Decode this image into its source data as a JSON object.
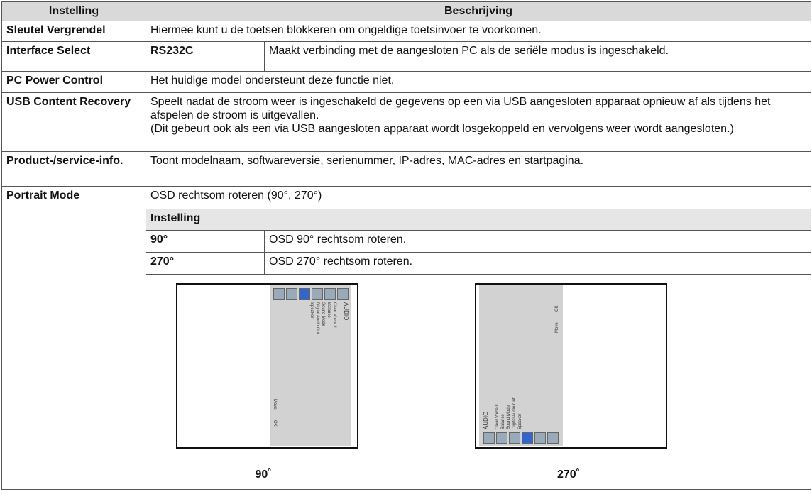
{
  "table": {
    "header": [
      "Instelling",
      "Beschrijving"
    ],
    "rows": [
      {
        "setting": "Sleutel Vergrendel",
        "description": "Hiermee kunt u de toetsen blokkeren om ongeldige toetsinvoer te voorkomen."
      },
      {
        "setting": "Interface Select",
        "option": "RS232C",
        "description": "Maakt verbinding met de aangesloten PC als de seriële modus is ingeschakeld."
      },
      {
        "setting": "PC Power Control",
        "description": "Het huidige model ondersteunt deze functie niet."
      },
      {
        "setting": "USB Content Recovery",
        "description": [
          "Speelt nadat de stroom weer is ingeschakeld de gegevens op een via USB aangesloten apparaat opnieuw af als tijdens het afspelen de stroom is uitgevallen.",
          "(Dit gebeurt ook als een via USB aangesloten apparaat wordt losgekoppeld en vervolgens weer wordt aangesloten.)"
        ]
      },
      {
        "setting": "Product-/service-info.",
        "description": "Toont modelnaam, softwareversie, serienummer, IP-adres, MAC-adres en startpagina."
      },
      {
        "setting": "Portrait Mode",
        "description": "OSD rechtsom roteren (90°, 270°)",
        "sub_header": "Instelling",
        "options": [
          {
            "option": "90°",
            "description": "OSD 90° rechtsom roteren."
          },
          {
            "option": "270°",
            "description": "OSD 270° rechtsom roteren."
          }
        ],
        "images": [
          {
            "caption": "90˚",
            "menu_title": "AUDIO",
            "menu_items": [
              "Clear Voice II",
              "Balance",
              "Sound Mode",
              "Digital Audio Out",
              "Speaker"
            ],
            "hints": [
              "Move",
              "OK"
            ]
          },
          {
            "caption": "270˚",
            "menu_title": "AUDIO",
            "menu_items": [
              "Clear Voice II",
              "Balance",
              "Sound Mode",
              "Digital Audio Out",
              "Speaker"
            ],
            "hints": [
              "Move",
              "OK"
            ]
          }
        ]
      }
    ]
  }
}
